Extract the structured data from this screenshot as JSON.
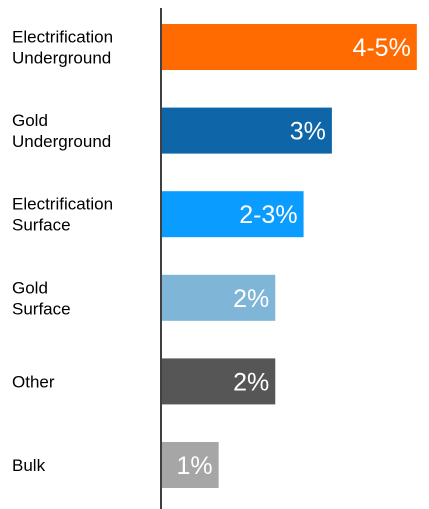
{
  "chart_data": {
    "type": "bar",
    "orientation": "horizontal",
    "title": "",
    "xlabel": "",
    "ylabel": "",
    "grid": false,
    "legend": "none",
    "categories": [
      [
        "Electrification",
        "Underground"
      ],
      [
        "Gold",
        "Underground"
      ],
      [
        "Electrification",
        "Surface"
      ],
      [
        "Gold",
        "Surface"
      ],
      [
        "Other"
      ],
      [
        "Bulk"
      ]
    ],
    "values": [
      4.5,
      3,
      2.5,
      2,
      2,
      1
    ],
    "value_labels": [
      "4-5%",
      "3%",
      "2-3%",
      "2%",
      "2%",
      "1%"
    ],
    "colors": [
      "#ff6b00",
      "#0e65a8",
      "#0a9dff",
      "#7fb5d7",
      "#565656",
      "#a6a6a6"
    ],
    "xlim": [
      0,
      4.75
    ]
  }
}
